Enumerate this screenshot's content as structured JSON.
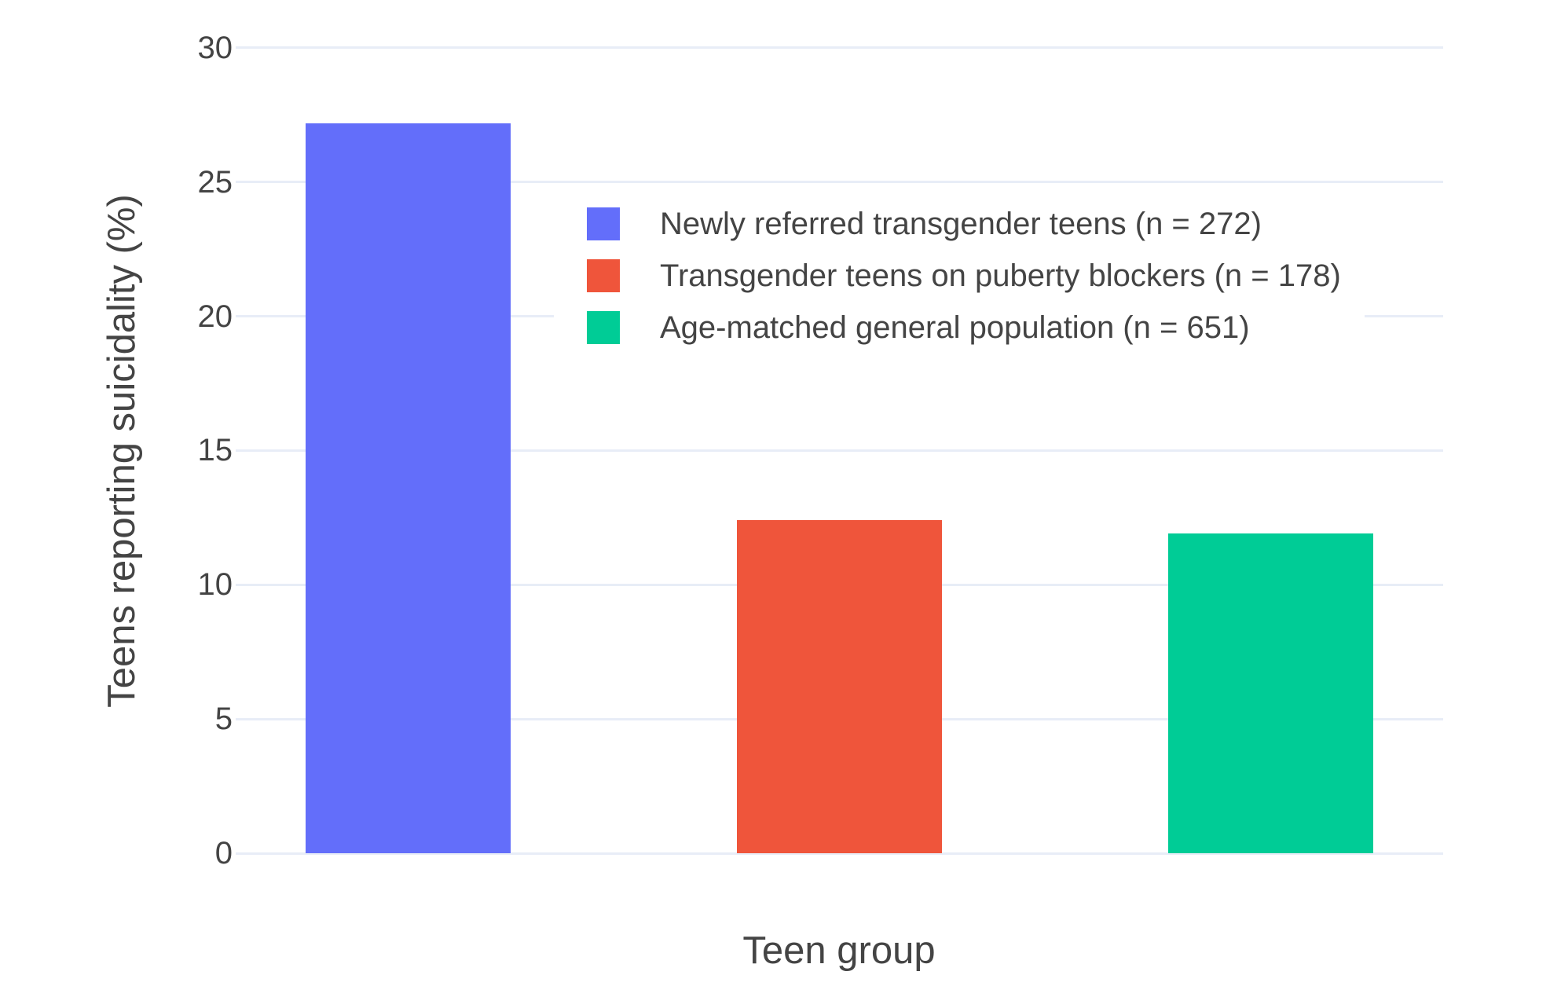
{
  "colors": {
    "background": "#FFFFFF",
    "grid": "#E8EDF7",
    "text": "#444444"
  },
  "chart_data": {
    "type": "bar",
    "title": "",
    "xlabel": "Teen group",
    "ylabel": "Teens reporting suicidality (%)",
    "ylim": [
      0,
      30
    ],
    "yticks": [
      0,
      5,
      10,
      15,
      20,
      25,
      30
    ],
    "grid": true,
    "x_tick_labels": [],
    "legend_position": "inside upper-right area, vertical, white background",
    "series": [
      {
        "name": "Newly referred transgender teens (n = 272)",
        "value": 27.2,
        "color": "#636EFA"
      },
      {
        "name": "Transgender teens on puberty blockers (n = 178)",
        "value": 12.4,
        "color": "#EF553B"
      },
      {
        "name": "Age-matched general population (n = 651)",
        "value": 11.9,
        "color": "#00CC96"
      }
    ]
  }
}
